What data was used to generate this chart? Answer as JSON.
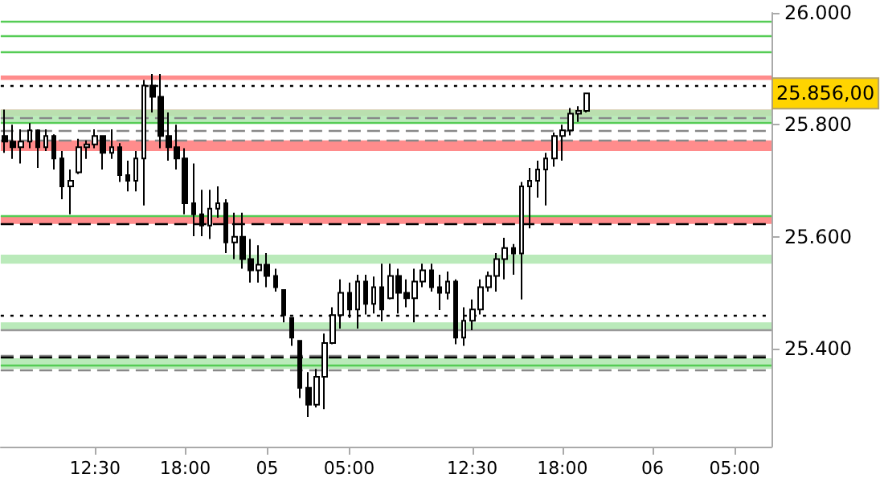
{
  "chart_data": {
    "type": "candlestick",
    "color": "#000000",
    "categories": [
      null,
      null,
      null,
      null,
      null,
      null,
      null,
      null,
      null,
      null,
      null,
      "12:30",
      null,
      null,
      null,
      null,
      null,
      null,
      null,
      null,
      null,
      null,
      "18:00",
      null,
      null,
      null,
      null,
      null,
      null,
      null,
      null,
      null,
      "05",
      null,
      null,
      null,
      null,
      null,
      null,
      null,
      null,
      null,
      "05:00",
      null,
      null,
      null,
      null,
      null,
      null,
      null,
      null,
      null,
      null,
      null,
      null,
      null,
      null,
      "12:30",
      null,
      null,
      null,
      null,
      null,
      null,
      null,
      null,
      null,
      null,
      "18:00",
      null,
      null,
      null,
      null,
      null,
      null,
      null,
      null,
      null,
      null,
      "06",
      null,
      null,
      null,
      null,
      null,
      null,
      null,
      null,
      null,
      "05:00",
      null,
      null,
      null,
      null
    ],
    "ohlc": [
      [
        25780,
        25827,
        25750,
        25770
      ],
      [
        25770,
        25800,
        25739,
        25760
      ],
      [
        25760,
        25792,
        25731,
        25770
      ],
      [
        25770,
        25803,
        25758,
        25790
      ],
      [
        25790,
        25792,
        25723,
        25760
      ],
      [
        25760,
        25792,
        25753,
        25780
      ],
      [
        25780,
        25783,
        25720,
        25740
      ],
      [
        25740,
        25753,
        25667,
        25690
      ],
      [
        25690,
        25720,
        25640,
        25700
      ],
      [
        25715,
        25775,
        25712,
        25760
      ],
      [
        25760,
        25772,
        25739,
        25765
      ],
      [
        25765,
        25792,
        25758,
        25780
      ],
      [
        25780,
        25781,
        25720,
        25750
      ],
      [
        25750,
        25792,
        25739,
        25760
      ],
      [
        25760,
        25767,
        25698,
        25710
      ],
      [
        25710,
        25736,
        25681,
        25700
      ],
      [
        25700,
        25753,
        25681,
        25740
      ],
      [
        25740,
        25880,
        25656,
        25870
      ],
      [
        25870,
        25891,
        25822,
        25850
      ],
      [
        25850,
        25891,
        25758,
        25780
      ],
      [
        25780,
        25822,
        25736,
        25760
      ],
      [
        25760,
        25800,
        25720,
        25740
      ],
      [
        25740,
        25758,
        25640,
        25660
      ],
      [
        25660,
        25731,
        25601,
        25640
      ],
      [
        25640,
        25684,
        25601,
        25620
      ],
      [
        25620,
        25684,
        25596,
        25650
      ],
      [
        25650,
        25690,
        25634,
        25660
      ],
      [
        25660,
        25667,
        25571,
        25590
      ],
      [
        25590,
        25643,
        25560,
        25600
      ],
      [
        25600,
        25643,
        25543,
        25560
      ],
      [
        25560,
        25596,
        25518,
        25540
      ],
      [
        25540,
        25585,
        25518,
        25550
      ],
      [
        25550,
        25571,
        25510,
        25530
      ],
      [
        25530,
        25543,
        25502,
        25510
      ],
      [
        25505,
        25505,
        25447,
        25460
      ],
      [
        25455,
        25455,
        25405,
        25420
      ],
      [
        25414,
        25414,
        25312,
        25330
      ],
      [
        25330,
        25358,
        25278,
        25300
      ],
      [
        25300,
        25364,
        25295,
        25350
      ],
      [
        25350,
        25427,
        25292,
        25410
      ],
      [
        25410,
        25474,
        25408,
        25460
      ],
      [
        25460,
        25524,
        25436,
        25500
      ],
      [
        25500,
        25518,
        25455,
        25470
      ],
      [
        25470,
        25532,
        25436,
        25520
      ],
      [
        25520,
        25532,
        25461,
        25480
      ],
      [
        25480,
        25529,
        25463,
        25510
      ],
      [
        25510,
        25552,
        25449,
        25470
      ],
      [
        25490,
        25552,
        25488,
        25530
      ],
      [
        25530,
        25543,
        25463,
        25500
      ],
      [
        25500,
        25524,
        25474,
        25490
      ],
      [
        25490,
        25543,
        25447,
        25520
      ],
      [
        25520,
        25552,
        25510,
        25540
      ],
      [
        25540,
        25552,
        25502,
        25510
      ],
      [
        25510,
        25532,
        25469,
        25500
      ],
      [
        25500,
        25538,
        25488,
        25520
      ],
      [
        25520,
        25524,
        25408,
        25420
      ],
      [
        25420,
        25474,
        25405,
        25450
      ],
      [
        25450,
        25488,
        25433,
        25470
      ],
      [
        25470,
        25524,
        25461,
        25510
      ],
      [
        25510,
        25538,
        25502,
        25530
      ],
      [
        25530,
        25571,
        25502,
        25560
      ],
      [
        25560,
        25598,
        25524,
        25580
      ],
      [
        25580,
        25587,
        25532,
        25570
      ],
      [
        25570,
        25698,
        25488,
        25690
      ],
      [
        25690,
        25723,
        25615,
        25700
      ],
      [
        25700,
        25736,
        25670,
        25720
      ],
      [
        25720,
        25750,
        25656,
        25740
      ],
      [
        25740,
        25786,
        25725,
        25780
      ],
      [
        25780,
        25800,
        25736,
        25790
      ],
      [
        25790,
        25830,
        25781,
        25820
      ],
      [
        25820,
        25833,
        25805,
        25825
      ],
      [
        25825,
        25856,
        25822,
        25856
      ],
      null,
      null,
      null,
      null,
      null,
      null,
      null,
      null,
      null,
      null,
      null,
      null,
      null,
      null,
      null,
      null,
      null,
      null,
      null,
      null,
      null,
      null
    ],
    "ylim": [
      25225,
      26000
    ],
    "yticks": [
      {
        "value": 25400,
        "label": "25.400"
      },
      {
        "value": 25600,
        "label": "25.600"
      },
      {
        "value": 25800,
        "label": "25.800"
      },
      {
        "value": 26000,
        "label": "26.000"
      }
    ],
    "ref_lines": [
      {
        "axis": "y",
        "value": 25985,
        "color": "#55cc55",
        "line_style": "solid"
      },
      {
        "axis": "y",
        "value": 25960,
        "color": "#55cc55",
        "line_style": "solid"
      },
      {
        "axis": "y",
        "value": 25930,
        "color": "#55cc55",
        "line_style": "solid"
      },
      {
        "axis": "y",
        "value": 25869,
        "color": "#000000",
        "line_style": "dotted"
      },
      {
        "axis": "y",
        "value": 25814,
        "color": "#888888",
        "line_style": "dashed"
      },
      {
        "axis": "y",
        "value": 25805,
        "color": "#55cc55",
        "line_style": "solid"
      },
      {
        "axis": "y",
        "value": 25789,
        "color": "#888888",
        "line_style": "dashed"
      },
      {
        "axis": "y",
        "value": 25772,
        "color": "#888888",
        "line_style": "dashed"
      },
      {
        "axis": "y",
        "value": 25637,
        "color": "#55cc55",
        "line_style": "solid"
      },
      {
        "axis": "y",
        "value": 25623,
        "color": "#000000",
        "line_style": "dashed"
      },
      {
        "axis": "y",
        "value": 25461,
        "color": "#000000",
        "line_style": "dotted"
      },
      {
        "axis": "y",
        "value": 25433,
        "color": "#999999",
        "line_style": "solid"
      },
      {
        "axis": "y",
        "value": 25389,
        "color": "#888888",
        "line_style": "dashed"
      },
      {
        "axis": "y",
        "value": 25386,
        "color": "#000000",
        "line_style": "dashed"
      },
      {
        "axis": "y",
        "value": 25372,
        "color": "#55cc55",
        "line_style": "solid"
      },
      {
        "axis": "y",
        "value": 25361,
        "color": "#888888",
        "line_style": "dashed"
      }
    ],
    "bands": [
      {
        "axis": "y",
        "from": 25880,
        "to": 25888,
        "color": "#ff8080"
      },
      {
        "axis": "y",
        "from": 25816,
        "to": 25827,
        "color": "#ff8080"
      },
      {
        "axis": "y",
        "from": 25753,
        "to": 25772,
        "color": "#ff8080"
      },
      {
        "axis": "y",
        "from": 25623,
        "to": 25637,
        "color": "#ff8080"
      },
      {
        "axis": "y",
        "from": 25805,
        "to": 25827,
        "color": "#b3e8b3"
      },
      {
        "axis": "y",
        "from": 25552,
        "to": 25568,
        "color": "#b3e8b3"
      },
      {
        "axis": "y",
        "from": 25433,
        "to": 25447,
        "color": "#b3e8b3"
      },
      {
        "axis": "y",
        "from": 25364,
        "to": 25383,
        "color": "#b3e8b3"
      }
    ],
    "annotations": [
      "25.856,00"
    ],
    "grid": false
  }
}
